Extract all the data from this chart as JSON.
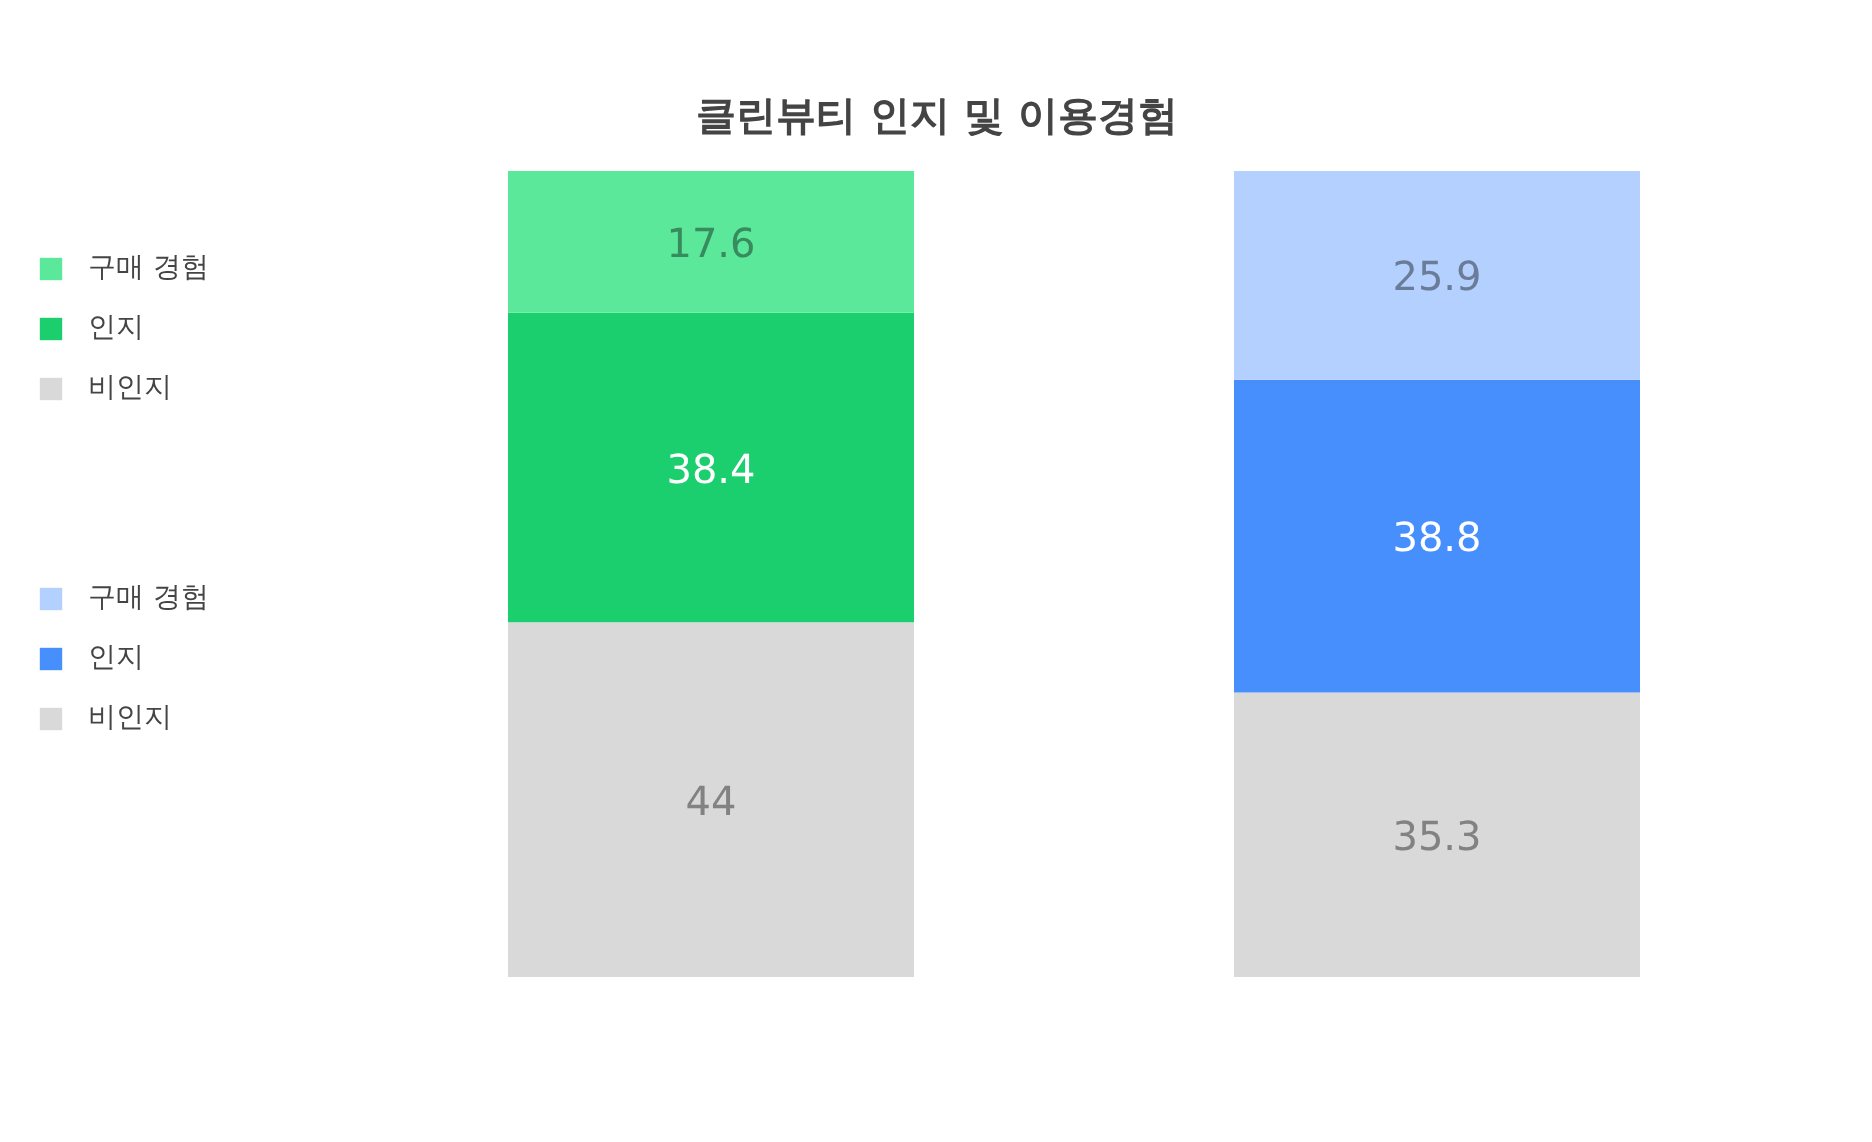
{
  "chart_data": {
    "type": "bar",
    "title": "클린뷰티 인지 및 이용경험",
    "categories": [
      null,
      null
    ],
    "stacked": true,
    "data_labels": true,
    "legend": "left",
    "series": [
      {
        "name": "비인지",
        "colors": [
          "#d9d9d9",
          "#d9d9d9"
        ],
        "values": [
          44,
          35.3
        ]
      },
      {
        "name": "인지",
        "colors": [
          "#1ccf6e",
          "#478ffd"
        ],
        "values": [
          38.4,
          38.8
        ]
      },
      {
        "name": "구매 경험",
        "colors": [
          "#5ce89a",
          "#b3d0ff"
        ],
        "values": [
          17.6,
          25.9
        ]
      }
    ]
  }
}
